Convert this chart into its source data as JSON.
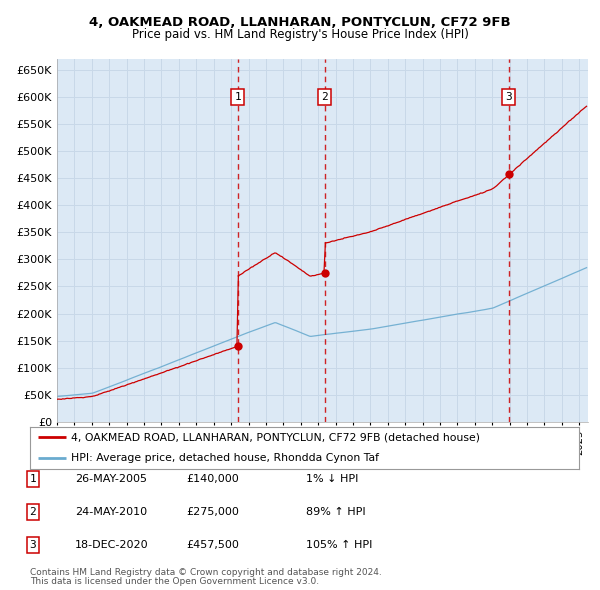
{
  "title1": "4, OAKMEAD ROAD, LLANHARAN, PONTYCLUN, CF72 9FB",
  "title2": "Price paid vs. HM Land Registry's House Price Index (HPI)",
  "ylim": [
    0,
    670000
  ],
  "yticks": [
    0,
    50000,
    100000,
    150000,
    200000,
    250000,
    300000,
    350000,
    400000,
    450000,
    500000,
    550000,
    600000,
    650000
  ],
  "ytick_labels": [
    "£0",
    "£50K",
    "£100K",
    "£150K",
    "£200K",
    "£250K",
    "£300K",
    "£350K",
    "£400K",
    "£450K",
    "£500K",
    "£550K",
    "£600K",
    "£650K"
  ],
  "background_color": "#ffffff",
  "plot_bg_color": "#dce9f5",
  "grid_color": "#c8d8e8",
  "sale_color": "#cc0000",
  "hpi_color": "#6aabcf",
  "vline_color": "#cc0000",
  "sale_dates": [
    2005.38,
    2010.38,
    2020.96
  ],
  "sale_prices": [
    140000,
    275000,
    457500
  ],
  "sale_labels": [
    "1",
    "2",
    "3"
  ],
  "transaction_table": [
    {
      "label": "1",
      "date": "26-MAY-2005",
      "price": "£140,000",
      "change": "1% ↓ HPI"
    },
    {
      "label": "2",
      "date": "24-MAY-2010",
      "price": "£275,000",
      "change": "89% ↑ HPI"
    },
    {
      "label": "3",
      "date": "18-DEC-2020",
      "price": "£457,500",
      "change": "105% ↑ HPI"
    }
  ],
  "legend_line1": "4, OAKMEAD ROAD, LLANHARAN, PONTYCLUN, CF72 9FB (detached house)",
  "legend_line2": "HPI: Average price, detached house, Rhondda Cynon Taf",
  "footer1": "Contains HM Land Registry data © Crown copyright and database right 2024.",
  "footer2": "This data is licensed under the Open Government Licence v3.0."
}
